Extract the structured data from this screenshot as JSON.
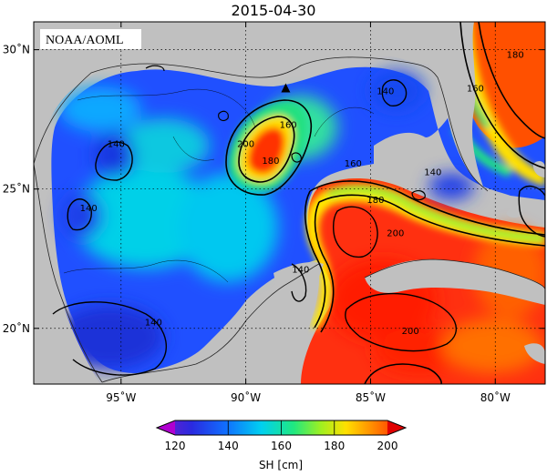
{
  "title": "2015-04-30",
  "credit": "NOAA/AOML",
  "map": {
    "lon_range": [
      -98.5,
      -78.0
    ],
    "lat_range": [
      18.0,
      31.0
    ],
    "lon_ticks": [
      {
        "value": -95,
        "label": "95˚W"
      },
      {
        "value": -90,
        "label": "90˚W"
      },
      {
        "value": -85,
        "label": "85˚W"
      },
      {
        "value": -80,
        "label": "80˚W"
      }
    ],
    "lat_ticks": [
      {
        "value": 30,
        "label": "30˚N"
      },
      {
        "value": 25,
        "label": "25˚N"
      },
      {
        "value": 20,
        "label": "20˚N"
      }
    ],
    "gridlines": true,
    "land_color": "#c0c0c0",
    "marker": {
      "shape": "triangle",
      "lon": -88.4,
      "lat": 28.6
    }
  },
  "contour_labels": [
    {
      "text": "140",
      "lon": -95.2,
      "lat": 26.6
    },
    {
      "text": "140",
      "lon": -96.3,
      "lat": 24.3
    },
    {
      "text": "140",
      "lon": -93.7,
      "lat": 20.2
    },
    {
      "text": "140",
      "lon": -87.8,
      "lat": 22.1
    },
    {
      "text": "140",
      "lon": -84.4,
      "lat": 28.5
    },
    {
      "text": "140",
      "lon": -82.5,
      "lat": 25.6
    },
    {
      "text": "160",
      "lon": -88.3,
      "lat": 27.3
    },
    {
      "text": "160",
      "lon": -85.7,
      "lat": 25.9
    },
    {
      "text": "160",
      "lon": -80.8,
      "lat": 28.6
    },
    {
      "text": "180",
      "lon": -89.0,
      "lat": 26.0
    },
    {
      "text": "180",
      "lon": -84.8,
      "lat": 24.6
    },
    {
      "text": "180",
      "lon": -79.2,
      "lat": 29.8
    },
    {
      "text": "200",
      "lon": -90.0,
      "lat": 26.6
    },
    {
      "text": "200",
      "lon": -84.0,
      "lat": 23.4
    },
    {
      "text": "200",
      "lon": -83.4,
      "lat": 19.9
    }
  ],
  "colorbar": {
    "label": "SH [cm]",
    "min": 120,
    "max": 200,
    "ticks": [
      120,
      140,
      160,
      180,
      200
    ],
    "extend": "both",
    "colors": [
      "#b000d0",
      "#3a1bd8",
      "#1060ff",
      "#00c8e8",
      "#10e890",
      "#90f020",
      "#ffe800",
      "#ff9000",
      "#ff2000",
      "#e00000"
    ]
  }
}
